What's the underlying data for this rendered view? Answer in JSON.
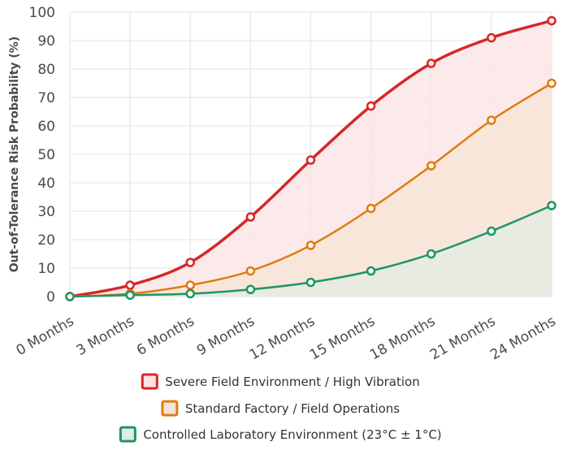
{
  "chart_data": {
    "type": "line",
    "title": "",
    "xlabel": "",
    "ylabel": "Out-of-Tolerance Risk Probability (%)",
    "categories": [
      "0 Months",
      "3 Months",
      "6 Months",
      "9 Months",
      "12 Months",
      "15 Months",
      "18 Months",
      "21 Months",
      "24 Months"
    ],
    "ylim": [
      0,
      100
    ],
    "yticks": [
      "0",
      "10",
      "20",
      "30",
      "40",
      "50",
      "60",
      "70",
      "80",
      "90",
      "100"
    ],
    "grid": true,
    "legend_position": "bottom",
    "series": [
      {
        "name": "Severe Field Environment / High Vibration",
        "color": "#d62728",
        "fill": "#fbe3e4",
        "values": [
          0,
          4,
          12,
          28,
          48,
          67,
          82,
          91,
          97
        ]
      },
      {
        "name": "Standard Factory / Field Operations",
        "color": "#e07b10",
        "fill": "#f8e4d6",
        "values": [
          0,
          1,
          4,
          9,
          18,
          31,
          46,
          62,
          75
        ]
      },
      {
        "name": "Controlled Laboratory Environment (23°C ± 1°C)",
        "color": "#1e9663",
        "fill": "#e0ece4",
        "values": [
          0,
          0.5,
          1,
          2.5,
          5,
          9,
          15,
          23,
          32
        ]
      }
    ]
  }
}
